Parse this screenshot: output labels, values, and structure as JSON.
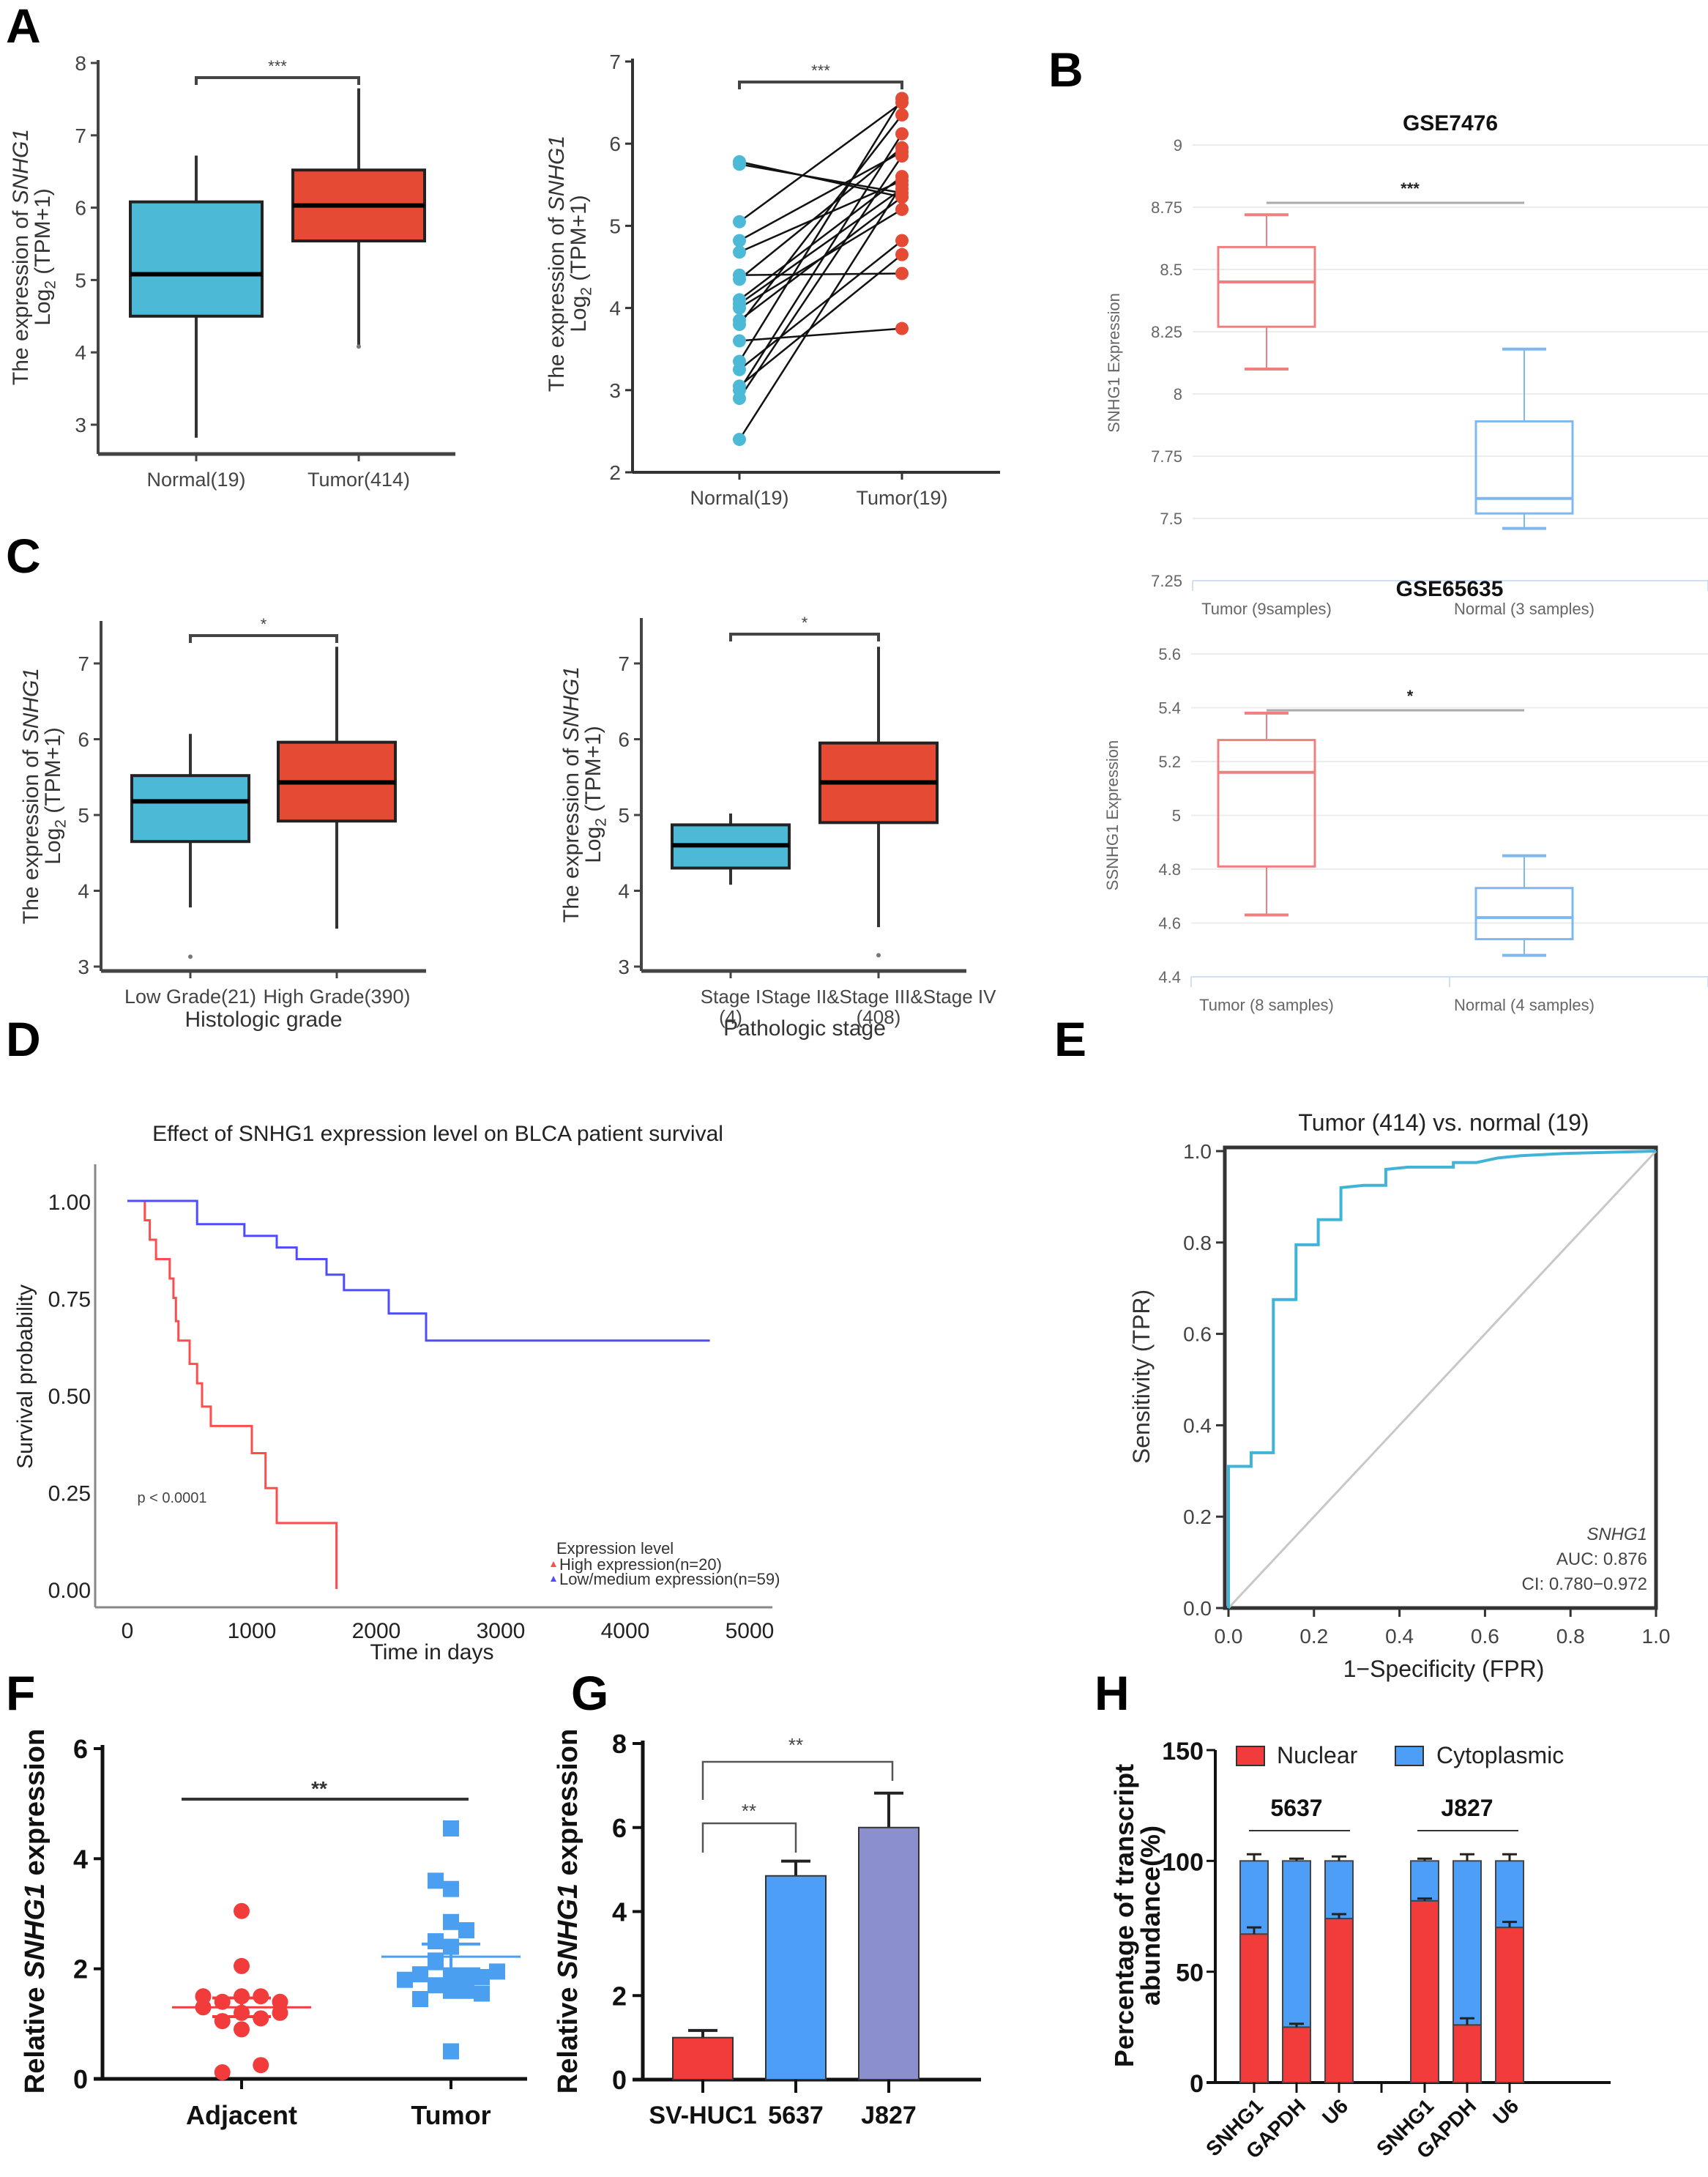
{
  "panel_labels": [
    "A",
    "B",
    "C",
    "D",
    "E",
    "F",
    "G",
    "H"
  ],
  "chart_data": [
    {
      "id": "A1",
      "panel": "A",
      "type": "box",
      "title": "",
      "ylabel": "The expression of SNHG1 Log2 (TPM+1)",
      "ylabel_lines": [
        "The expression of SNHG1",
        "Log2 (TPM+1)"
      ],
      "ylim": [
        2.6,
        8
      ],
      "yticks": [
        3,
        4,
        5,
        6,
        7,
        8
      ],
      "categories": [
        "Normal(19)",
        "Tumor(414)"
      ],
      "boxes": [
        {
          "name": "Normal(19)",
          "q1": 4.5,
          "median": 5.08,
          "q3": 6.08,
          "whisker_low": 2.82,
          "whisker_high": 6.72,
          "outliers": [],
          "color": "#4cb9d6"
        },
        {
          "name": "Tumor(414)",
          "q1": 5.54,
          "median": 6.03,
          "q3": 6.52,
          "whisker_low": 4.1,
          "whisker_high": 7.65,
          "outliers": [
            4.08
          ],
          "color": "#e54b34"
        }
      ],
      "significance": "***"
    },
    {
      "id": "A2",
      "panel": "A",
      "type": "paired-scatter",
      "ylabel_lines": [
        "The expression of SNHG1",
        "Log2 (TPM+1)"
      ],
      "ylim": [
        2,
        7
      ],
      "yticks": [
        2,
        3,
        4,
        5,
        6,
        7
      ],
      "categories": [
        "Normal(19)",
        "Tumor(19)"
      ],
      "pairs": [
        [
          5.78,
          5.35
        ],
        [
          5.75,
          5.4
        ],
        [
          5.05,
          6.5
        ],
        [
          4.82,
          5.9
        ],
        [
          4.68,
          5.55
        ],
        [
          4.4,
          4.42
        ],
        [
          4.35,
          5.95
        ],
        [
          4.1,
          5.6
        ],
        [
          4.05,
          5.45
        ],
        [
          4.0,
          5.2
        ],
        [
          3.85,
          5.35
        ],
        [
          3.8,
          6.35
        ],
        [
          3.6,
          3.75
        ],
        [
          3.35,
          6.55
        ],
        [
          3.25,
          4.82
        ],
        [
          3.05,
          4.65
        ],
        [
          3.0,
          6.12
        ],
        [
          2.9,
          5.85
        ],
        [
          2.4,
          5.5
        ]
      ],
      "colors": {
        "normal": "#4cb9d6",
        "tumor": "#e54b34"
      },
      "significance": "***"
    },
    {
      "id": "B1",
      "panel": "B",
      "type": "box",
      "title": "GSE7476",
      "ylabel": "SNHG1 Expression",
      "ylim": [
        7.25,
        9
      ],
      "yticks": [
        7.25,
        7.5,
        7.75,
        8,
        8.25,
        8.5,
        8.75,
        9
      ],
      "ytick_labels": [
        "7.25",
        "7.5",
        "7.75",
        "8",
        "8.25",
        "8.5",
        "8.75",
        "9"
      ],
      "grid": true,
      "categories": [
        "Tumor  (9samples)",
        "Normal (3 samples)"
      ],
      "boxes": [
        {
          "name": "Tumor (9samples)",
          "q1": 8.27,
          "median": 8.45,
          "q3": 8.59,
          "whisker_low": 8.1,
          "whisker_high": 8.72,
          "color": "#f08080"
        },
        {
          "name": "Normal (3 samples)",
          "q1": 7.52,
          "median": 7.58,
          "q3": 7.89,
          "whisker_low": 7.46,
          "whisker_high": 8.18,
          "color": "#7fb8ee"
        }
      ],
      "significance": "***"
    },
    {
      "id": "B2",
      "panel": "B",
      "type": "box",
      "title": "GSE65635",
      "ylabel": "SSNHG1 Expression",
      "ylim": [
        4.4,
        5.6
      ],
      "yticks": [
        4.4,
        4.6,
        4.8,
        5,
        5.2,
        5.4,
        5.6
      ],
      "ytick_labels": [
        "4.4",
        "4.6",
        "4.8",
        "5",
        "5.2",
        "5.4",
        "5.6"
      ],
      "grid": true,
      "categories": [
        "Tumor (8 samples)",
        "Normal (4 samples)"
      ],
      "boxes": [
        {
          "name": "Tumor (8 samples)",
          "q1": 4.81,
          "median": 5.16,
          "q3": 5.28,
          "whisker_low": 4.63,
          "whisker_high": 5.38,
          "color": "#f08080"
        },
        {
          "name": "Normal (4 samples)",
          "q1": 4.54,
          "median": 4.62,
          "q3": 4.73,
          "whisker_low": 4.48,
          "whisker_high": 4.85,
          "color": "#7fb8ee"
        }
      ],
      "significance": "*"
    },
    {
      "id": "C1",
      "panel": "C",
      "type": "box",
      "ylabel_lines": [
        "The expression of SNHG1",
        "Log2 (TPM+1)"
      ],
      "xlabel": "Histologic grade",
      "ylim": [
        2.95,
        7.55
      ],
      "yticks": [
        3,
        4,
        5,
        6,
        7
      ],
      "categories": [
        "Low Grade(21)",
        "High Grade(390)"
      ],
      "boxes": [
        {
          "name": "Low Grade(21)",
          "q1": 4.65,
          "median": 5.18,
          "q3": 5.52,
          "whisker_low": 3.78,
          "whisker_high": 6.07,
          "outliers": [
            3.13
          ],
          "color": "#4cb9d6"
        },
        {
          "name": "High Grade(390)",
          "q1": 4.92,
          "median": 5.43,
          "q3": 5.96,
          "whisker_low": 3.5,
          "whisker_high": 7.22,
          "outliers": [],
          "color": "#e54b34"
        }
      ],
      "significance": "*"
    },
    {
      "id": "C2",
      "panel": "C",
      "type": "box",
      "ylabel_lines": [
        "The expression of SNHG1",
        "Log2 (TPM+1)"
      ],
      "xlabel": "Pathologic stage",
      "ylim": [
        2.95,
        7.55
      ],
      "yticks": [
        3,
        4,
        5,
        6,
        7
      ],
      "categories": [
        "Stage I\n(4)",
        "Stage II&Stage III&Stage IV\n(408)"
      ],
      "category_lines": [
        [
          "Stage I",
          "(4)"
        ],
        [
          "Stage II&Stage III&Stage IV",
          "(408)"
        ]
      ],
      "boxes": [
        {
          "name": "Stage I (4)",
          "q1": 4.3,
          "median": 4.6,
          "q3": 4.87,
          "whisker_low": 4.08,
          "whisker_high": 5.02,
          "outliers": [],
          "color": "#4cb9d6"
        },
        {
          "name": "Stage II&Stage III&Stage IV (408)",
          "q1": 4.9,
          "median": 5.43,
          "q3": 5.95,
          "whisker_low": 3.52,
          "whisker_high": 7.22,
          "outliers": [
            3.15
          ],
          "color": "#e54b34"
        }
      ],
      "significance": "*"
    },
    {
      "id": "D",
      "panel": "D",
      "type": "line",
      "subtype": "kaplan-meier",
      "title": "Effect of SNHG1 expression level on BLCA patient survival",
      "xlabel": "Time in days",
      "ylabel": "Survival probability",
      "xlim": [
        -200,
        5000
      ],
      "xticks": [
        0,
        1000,
        2000,
        3000,
        4000,
        5000
      ],
      "ylim": [
        -0.05,
        1.03
      ],
      "yticks": [
        0,
        0.25,
        0.5,
        0.75,
        1.0
      ],
      "ytick_labels": [
        "0.00",
        "0.25",
        "0.50",
        "0.75",
        "1.00"
      ],
      "annotation": "p < 0.0001",
      "legend_title": "Expression level",
      "legend_position": "bottom-right",
      "series": [
        {
          "name": "High expression(n=20)",
          "color": "#ff4d4d",
          "steps": [
            [
              0,
              1.0
            ],
            [
              140,
              0.95
            ],
            [
              180,
              0.9
            ],
            [
              230,
              0.85
            ],
            [
              340,
              0.8
            ],
            [
              370,
              0.75
            ],
            [
              390,
              0.69
            ],
            [
              410,
              0.64
            ],
            [
              500,
              0.58
            ],
            [
              560,
              0.53
            ],
            [
              600,
              0.47
            ],
            [
              670,
              0.42
            ],
            [
              1000,
              0.35
            ],
            [
              1110,
              0.26
            ],
            [
              1200,
              0.17
            ],
            [
              1680,
              0.0
            ]
          ],
          "end": 1680
        },
        {
          "name": "Low/medium expression(n=59)",
          "color": "#4d4dff",
          "steps": [
            [
              0,
              1.0
            ],
            [
              560,
              0.94
            ],
            [
              940,
              0.91
            ],
            [
              1200,
              0.88
            ],
            [
              1360,
              0.85
            ],
            [
              1600,
              0.81
            ],
            [
              1740,
              0.77
            ],
            [
              2100,
              0.71
            ],
            [
              2400,
              0.64
            ]
          ],
          "end": 4680
        }
      ]
    },
    {
      "id": "E",
      "panel": "E",
      "type": "line",
      "subtype": "roc",
      "title": "Tumor (414) vs. normal (19)",
      "xlabel": "1−Specificity (FPR)",
      "ylabel": "Sensitivity (TPR)",
      "xlim": [
        0,
        1
      ],
      "ylim": [
        0,
        1
      ],
      "xticks": [
        0,
        0.2,
        0.4,
        0.6,
        0.8,
        1.0
      ],
      "yticks": [
        0,
        0.2,
        0.4,
        0.6,
        0.8,
        1.0
      ],
      "tick_labels": [
        "0.0",
        "0.2",
        "0.4",
        "0.6",
        "0.8",
        "1.0"
      ],
      "annotation_lines": [
        "SNHG1",
        "AUC: 0.876",
        "CI: 0.780−0.972"
      ],
      "color": "#40b4d8",
      "points": [
        [
          0,
          0
        ],
        [
          0,
          0.31
        ],
        [
          0.053,
          0.31
        ],
        [
          0.053,
          0.34
        ],
        [
          0.105,
          0.34
        ],
        [
          0.105,
          0.675
        ],
        [
          0.158,
          0.675
        ],
        [
          0.158,
          0.795
        ],
        [
          0.21,
          0.795
        ],
        [
          0.21,
          0.85
        ],
        [
          0.263,
          0.85
        ],
        [
          0.263,
          0.92
        ],
        [
          0.316,
          0.925
        ],
        [
          0.368,
          0.925
        ],
        [
          0.368,
          0.96
        ],
        [
          0.42,
          0.965
        ],
        [
          0.526,
          0.965
        ],
        [
          0.526,
          0.975
        ],
        [
          0.58,
          0.975
        ],
        [
          0.63,
          0.985
        ],
        [
          0.684,
          0.99
        ],
        [
          0.79,
          0.995
        ],
        [
          1,
          1
        ]
      ]
    },
    {
      "id": "F",
      "panel": "F",
      "type": "scatter",
      "ylabel": "Relative SNHG1 expression",
      "ylim": [
        0,
        6
      ],
      "yticks": [
        0,
        2,
        4,
        6
      ],
      "categories": [
        "Adjacent",
        "Tumor"
      ],
      "groups": [
        {
          "name": "Adjacent",
          "color": "#f23b3b",
          "marker": "circle",
          "mean": 1.3,
          "sem_low": 1.13,
          "sem_high": 1.47,
          "points": [
            [
              0,
              3.05
            ],
            [
              0,
              2.05
            ],
            [
              -0.7,
              1.5
            ],
            [
              -0.7,
              1.3
            ],
            [
              -0.35,
              1.4
            ],
            [
              0,
              1.5
            ],
            [
              0.35,
              1.5
            ],
            [
              0.7,
              1.4
            ],
            [
              -0.35,
              1.05
            ],
            [
              0,
              1.2
            ],
            [
              0.35,
              1.1
            ],
            [
              0.7,
              1.2
            ],
            [
              0,
              0.9
            ],
            [
              -0.35,
              0.12
            ],
            [
              0.35,
              0.25
            ]
          ]
        },
        {
          "name": "Tumor",
          "color": "#4a9ff0",
          "marker": "square",
          "mean": 2.22,
          "sem_low": 2.0,
          "sem_high": 2.45,
          "points": [
            [
              0,
              4.55
            ],
            [
              -0.28,
              3.6
            ],
            [
              0,
              3.45
            ],
            [
              0,
              2.85
            ],
            [
              0.28,
              2.7
            ],
            [
              -0.28,
              2.5
            ],
            [
              0,
              2.4
            ],
            [
              -0.28,
              2.15
            ],
            [
              -0.84,
              1.8
            ],
            [
              -0.56,
              1.9
            ],
            [
              -0.28,
              1.7
            ],
            [
              0,
              1.85
            ],
            [
              0,
              1.6
            ],
            [
              0.28,
              1.85
            ],
            [
              0.28,
              1.6
            ],
            [
              0.56,
              1.85
            ],
            [
              0.56,
              1.55
            ],
            [
              0.84,
              1.95
            ],
            [
              -0.56,
              1.45
            ],
            [
              0,
              0.5
            ]
          ]
        }
      ],
      "significance": "**"
    },
    {
      "id": "G",
      "panel": "G",
      "type": "bar",
      "ylabel": "Relative SNHG1 expression",
      "ylim": [
        0,
        8
      ],
      "yticks": [
        0,
        2,
        4,
        6,
        8
      ],
      "categories": [
        "SV-HUC1",
        "5637",
        "J827"
      ],
      "values": [
        1.0,
        4.85,
        6.0
      ],
      "errors": [
        0.17,
        0.35,
        0.82
      ],
      "colors": [
        "#f23b3b",
        "#4d9ef7",
        "#8b8fcd"
      ],
      "comparisons": [
        {
          "from": "SV-HUC1",
          "to": "5637",
          "label": "**"
        },
        {
          "from": "SV-HUC1",
          "to": "J827",
          "label": "**"
        }
      ]
    },
    {
      "id": "H",
      "panel": "H",
      "type": "bar",
      "subtype": "stacked",
      "ylabel_lines": [
        "Percentage of transcript",
        "abundance(%)"
      ],
      "ylim": [
        0,
        150
      ],
      "yticks": [
        0,
        50,
        100,
        150
      ],
      "groups": [
        "5637",
        "J827"
      ],
      "categories": [
        "SNHG1",
        "GAPDH",
        "U6",
        "SNHG1",
        "GAPDH",
        "U6"
      ],
      "legend_position": "top",
      "series": [
        {
          "name": "Nuclear",
          "color": "#f23b3b",
          "values": [
            67,
            25,
            74,
            82,
            26,
            70
          ],
          "errors": [
            3,
            1.5,
            2,
            1,
            3,
            2.5
          ]
        },
        {
          "name": "Cytoplasmic",
          "color": "#4d9ef7",
          "values": [
            33,
            75,
            26,
            18,
            74,
            30
          ],
          "errors": [
            3,
            1,
            2,
            1,
            3,
            3
          ]
        }
      ]
    }
  ]
}
